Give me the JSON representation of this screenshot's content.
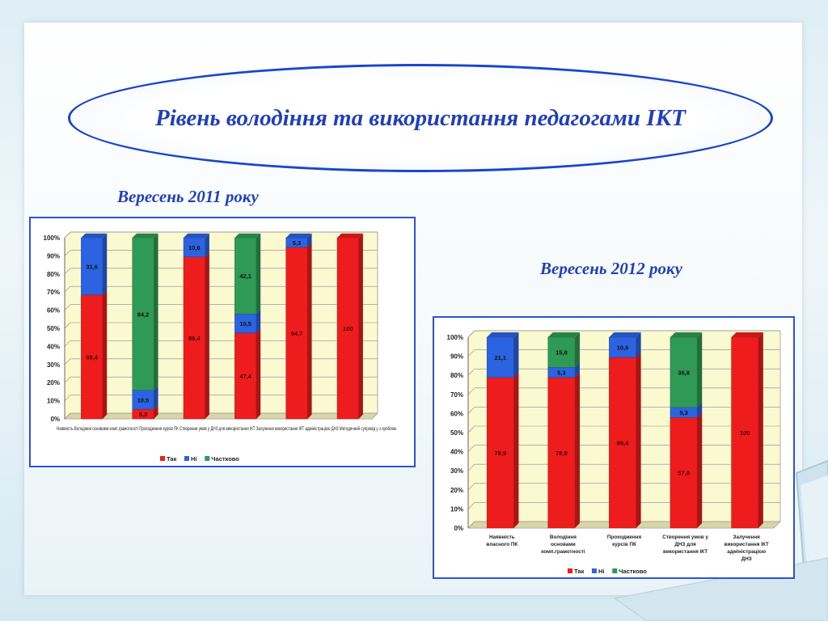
{
  "slide": {
    "title": "Рівень володіння та використання педагогами ІКТ"
  },
  "colors": {
    "tak": "#ee1c1c",
    "ni": "#2b63e0",
    "chastkovo": "#2f9a55",
    "plot_bg": "#fbf9cf",
    "caption": "#1f3fbf"
  },
  "chart_data": [
    {
      "type": "bar",
      "stacked": true,
      "caption": "Вересень 2011 року",
      "categories": [
        "Наявність власного ПК",
        "Володіння основами комп.грамотності",
        "Проходження курсів ПК",
        "Створення умов у ДНЗ для використання ІКТ",
        "Залучення використання ІКТ адміністрацією ДНЗ",
        "Методичний супровід у з проблем"
      ],
      "category_labels_line": "Наявність  Володіння основами комп.грамотності Проходження курсів ПК  Створення умов у ДНЗ для використання ІКТ  Залучення використання ІКТ адміністрацією ДНЗ  Методичний супровід у з проблем",
      "series": [
        {
          "name": "Так",
          "values": [
            68.4,
            5.3,
            89.4,
            47.4,
            94.7,
            100
          ]
        },
        {
          "name": "Ні",
          "values": [
            31.6,
            10.5,
            10.6,
            10.5,
            5.3,
            0
          ]
        },
        {
          "name": "Частково",
          "values": [
            0,
            84.2,
            0,
            42.1,
            0,
            0
          ]
        }
      ],
      "data_labels": [
        [
          "68,4",
          "5,3",
          "89,4",
          "47,4",
          "94,7",
          "100"
        ],
        [
          "31,6",
          "10,5",
          "10,6",
          "10,5",
          "5,3",
          ""
        ],
        [
          "",
          "84,2",
          "",
          "42,1",
          "",
          ""
        ]
      ],
      "ylim": [
        0,
        100
      ],
      "y_ticks": [
        0,
        10,
        20,
        30,
        40,
        50,
        60,
        70,
        80,
        90,
        100
      ],
      "y_tick_labels": [
        "0%",
        "10%",
        "20%",
        "30%",
        "40%",
        "50%",
        "60%",
        "70%",
        "80%",
        "90%",
        "100%"
      ],
      "grid": true,
      "legend_position": "bottom",
      "legend": [
        "Так",
        "Ні",
        "Частково"
      ]
    },
    {
      "type": "bar",
      "stacked": true,
      "caption": "Вересень 2012 року",
      "categories": [
        "Наявність власного ПК",
        "Володіння основами комп.грамотності",
        "Проходження курсів ПК",
        "Створення умов у ДНЗ для використання ІКТ",
        "Залучення використання ІКТ адміністрацією ДНЗ"
      ],
      "category_label_lines": [
        [
          "Наявність",
          "власного ПК"
        ],
        [
          "Володіння",
          "основами",
          "комп.грамотності"
        ],
        [
          "Проходження",
          "курсів ПК"
        ],
        [
          "Створення умов у",
          "ДНЗ для",
          "використання ІКТ"
        ],
        [
          "Залучення",
          "використання ІКТ",
          "адміністрацією",
          "ДНЗ"
        ]
      ],
      "series": [
        {
          "name": "Так",
          "values": [
            78.9,
            78.9,
            89.4,
            57.9,
            100
          ]
        },
        {
          "name": "Ні",
          "values": [
            21.1,
            5.3,
            10.6,
            5.3,
            0
          ]
        },
        {
          "name": "Частково",
          "values": [
            0,
            15.8,
            0,
            36.8,
            0
          ]
        }
      ],
      "data_labels": [
        [
          "78,9",
          "78,9",
          "89,4",
          "57,9",
          "100"
        ],
        [
          "21,1",
          "5,3",
          "10,6",
          "5,3",
          ""
        ],
        [
          "",
          "15,8",
          "",
          "36,8",
          ""
        ]
      ],
      "ylim": [
        0,
        100
      ],
      "y_ticks": [
        0,
        10,
        20,
        30,
        40,
        50,
        60,
        70,
        80,
        90,
        100
      ],
      "y_tick_labels": [
        "0%",
        "10%",
        "20%",
        "30%",
        "40%",
        "50%",
        "60%",
        "70%",
        "80%",
        "90%",
        "100%"
      ],
      "grid": true,
      "legend_position": "bottom",
      "legend": [
        "Так",
        "Ні",
        "Частково"
      ]
    }
  ]
}
